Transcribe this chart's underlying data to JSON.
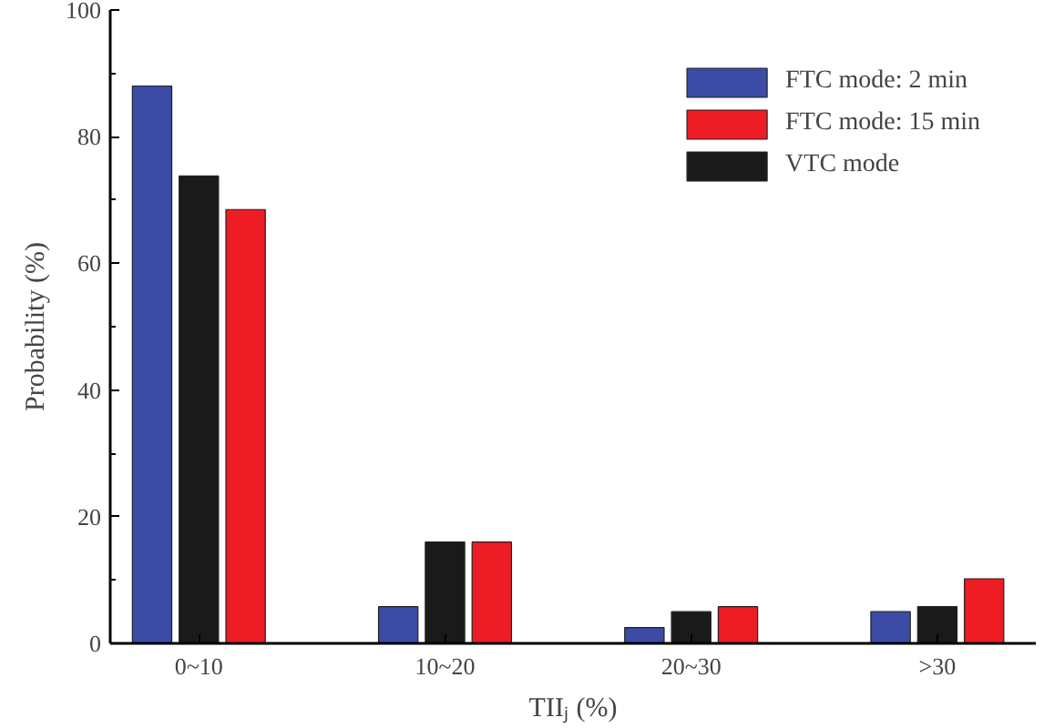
{
  "chart_data": {
    "type": "bar",
    "xlabel": "TIIⱼ (%)",
    "ylabel": "Probability (%)",
    "categories": [
      "0~10",
      "10~20",
      "20~30",
      ">30"
    ],
    "series": [
      {
        "name": "FTC mode: 2 min",
        "color": "#3b4ba6",
        "values": [
          88,
          5.8,
          2.5,
          5
        ]
      },
      {
        "name": "VTC mode",
        "color": "#1a1a1a",
        "values": [
          73.8,
          16,
          5,
          5.8
        ]
      },
      {
        "name": "FTC mode: 15 min",
        "color": "#ee1c25",
        "values": [
          68.5,
          16,
          5.8,
          10.2
        ]
      }
    ],
    "ylim": [
      0,
      100
    ],
    "yticks": [
      0,
      20,
      40,
      60,
      80,
      100
    ],
    "grid": false,
    "legend": "top right"
  }
}
